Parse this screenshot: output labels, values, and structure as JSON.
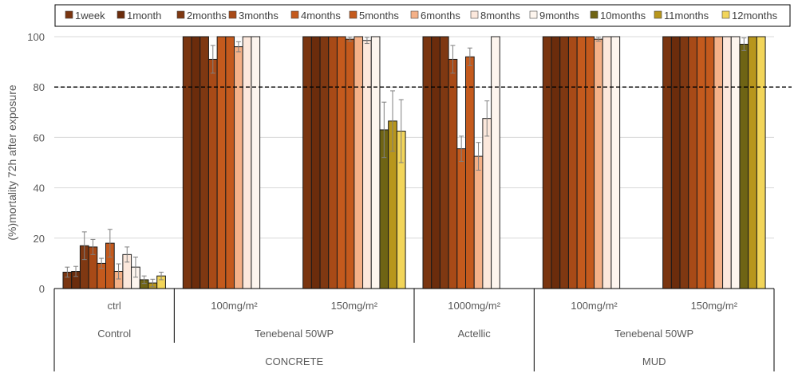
{
  "chart_data": {
    "type": "bar",
    "ylabel": "(%)mortality  72h after exposure",
    "ylim": [
      0,
      100
    ],
    "yticks": [
      0,
      20,
      40,
      60,
      80,
      100
    ],
    "threshold": 80,
    "grid": true,
    "legend_position": "top",
    "series": [
      {
        "name": "1week",
        "color": "#7a3510"
      },
      {
        "name": "1month",
        "color": "#6b2c0c"
      },
      {
        "name": "2months",
        "color": "#7f3812"
      },
      {
        "name": "3months",
        "color": "#a84a17"
      },
      {
        "name": "4months",
        "color": "#c45a1d"
      },
      {
        "name": "5months",
        "color": "#c45a1d"
      },
      {
        "name": "6months",
        "color": "#f4b188"
      },
      {
        "name": "8months",
        "color": "#fce8dc"
      },
      {
        "name": "9months",
        "color": "#fdf5ee"
      },
      {
        "name": "10months",
        "color": "#6f6414"
      },
      {
        "name": "11months",
        "color": "#b8961c"
      },
      {
        "name": "12months",
        "color": "#f2d55a"
      }
    ],
    "groups": [
      {
        "label": "ctrl",
        "values": [
          6.5,
          6.8,
          17,
          16.5,
          10,
          18,
          6.8,
          13.5,
          8.5,
          3.5,
          2.2,
          5
        ],
        "errors": [
          2,
          2,
          5.5,
          3,
          2,
          5.5,
          3,
          3,
          4,
          1.5,
          1.5,
          1.5
        ]
      },
      {
        "label": "100mg/m²",
        "values": [
          100,
          100,
          100,
          91,
          100,
          100,
          96,
          100,
          100,
          null,
          null,
          null
        ],
        "errors": [
          0,
          0,
          0,
          5.5,
          0,
          0,
          2,
          0,
          0,
          null,
          null,
          null
        ]
      },
      {
        "label": "150mg/m²",
        "values": [
          100,
          100,
          100,
          100,
          100,
          99,
          100,
          98.5,
          100,
          63,
          66.5,
          62.5
        ],
        "errors": [
          0,
          0,
          0,
          0,
          0,
          0.8,
          0,
          1.2,
          0,
          11,
          12,
          12.5
        ]
      },
      {
        "label": "1000mg/m²",
        "values": [
          100,
          100,
          100,
          91,
          55.5,
          92,
          52.5,
          67.5,
          100,
          null,
          null,
          null
        ],
        "errors": [
          0,
          0,
          0,
          5.5,
          5,
          3.5,
          5.5,
          7,
          0,
          null,
          null,
          null
        ]
      },
      {
        "label": "100mg/m²",
        "values": [
          100,
          100,
          100,
          100,
          100,
          100,
          99,
          100,
          100,
          null,
          null,
          null
        ],
        "errors": [
          0,
          0,
          0,
          0,
          0,
          0,
          0.8,
          0,
          0,
          null,
          null,
          null
        ]
      },
      {
        "label": "150mg/m²",
        "values": [
          100,
          100,
          100,
          100,
          100,
          100,
          100,
          100,
          100,
          97,
          100,
          100
        ],
        "errors": [
          0,
          0,
          0,
          0,
          0,
          0,
          0,
          0,
          0,
          2.5,
          0,
          0
        ]
      }
    ],
    "treatments": [
      {
        "label": "Control",
        "span": [
          0,
          0
        ]
      },
      {
        "label": "Tenebenal 50WP",
        "span": [
          1,
          2
        ]
      },
      {
        "label": "Actellic",
        "span": [
          3,
          3
        ]
      },
      {
        "label": "Tenebenal 50WP",
        "span": [
          4,
          5
        ]
      }
    ],
    "surfaces": [
      {
        "label": "CONCRETE",
        "span": [
          0,
          3
        ]
      },
      {
        "label": "MUD",
        "span": [
          4,
          5
        ]
      }
    ]
  }
}
